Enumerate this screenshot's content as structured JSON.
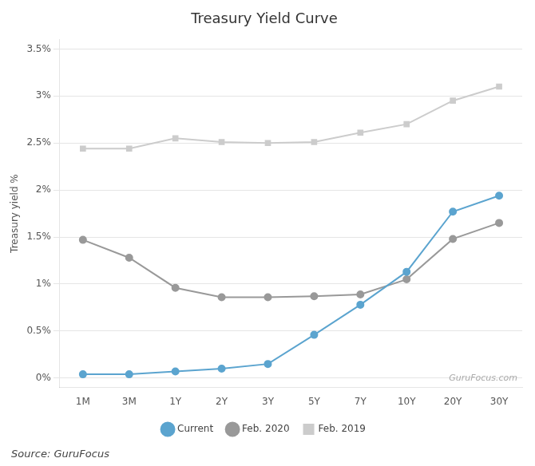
{
  "chart_data": {
    "type": "line",
    "title": "Treasury Yield Curve",
    "ylabel": "Treasury yield %",
    "categories": [
      "1M",
      "3M",
      "1Y",
      "2Y",
      "3Y",
      "5Y",
      "7Y",
      "10Y",
      "20Y",
      "30Y"
    ],
    "series": [
      {
        "name": "Current",
        "color": "#5BA4CF",
        "marker": "circle",
        "values": [
          0.04,
          0.04,
          0.07,
          0.1,
          0.15,
          0.46,
          0.78,
          1.13,
          1.77,
          1.94
        ]
      },
      {
        "name": "Feb. 2020",
        "color": "#999999",
        "marker": "circle",
        "values": [
          1.47,
          1.28,
          0.96,
          0.86,
          0.86,
          0.87,
          0.89,
          1.05,
          1.48,
          1.65
        ]
      },
      {
        "name": "Feb. 2019",
        "color": "#CCCCCC",
        "marker": "square",
        "values": [
          2.44,
          2.44,
          2.55,
          2.51,
          2.5,
          2.51,
          2.61,
          2.7,
          2.95,
          3.1
        ]
      }
    ],
    "ylim": [
      -0.1,
      3.6
    ],
    "yticks": [
      {
        "value": 0,
        "label": "0%"
      },
      {
        "value": 0.5,
        "label": "0.5%"
      },
      {
        "value": 1,
        "label": "1%"
      },
      {
        "value": 1.5,
        "label": "1.5%"
      },
      {
        "value": 2,
        "label": "2%"
      },
      {
        "value": 2.5,
        "label": "2.5%"
      },
      {
        "value": 3,
        "label": "3%"
      },
      {
        "value": 3.5,
        "label": "3.5%"
      }
    ],
    "grid": true,
    "legend": "bottom",
    "annotations": [
      "GuruFocus.com",
      "Source: GuruFocus"
    ]
  }
}
